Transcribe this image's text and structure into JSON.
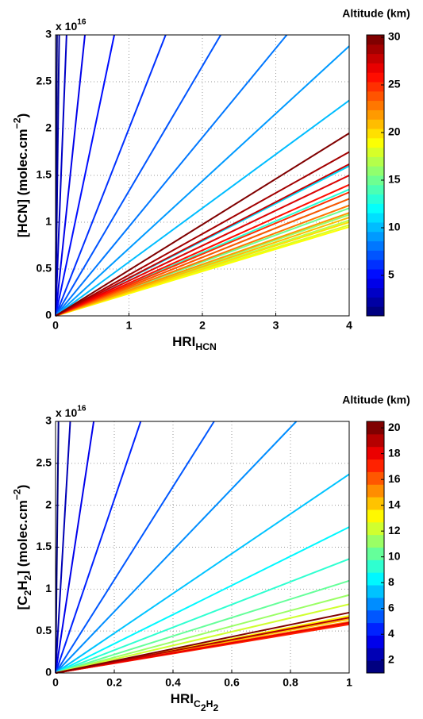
{
  "chart_data": [
    {
      "type": "line",
      "xlabel": [
        {
          "text": "HRI"
        },
        {
          "text": "HCN",
          "script": "sub"
        }
      ],
      "ylabel": [
        {
          "text": "[HCN] (molec.cm"
        },
        {
          "text": "−2",
          "script": "sup"
        },
        {
          "text": ")"
        }
      ],
      "y_multiplier": [
        {
          "text": "x 10"
        },
        {
          "text": "16",
          "script": "sup"
        }
      ],
      "xlim": [
        0,
        4
      ],
      "xticks": [
        0,
        1,
        2,
        3,
        4
      ],
      "ylim": [
        0,
        3
      ],
      "yticks": [
        0,
        0.5,
        1,
        1.5,
        2,
        2.5,
        3
      ],
      "grid": true,
      "colorbar": {
        "label": "Altitude (km)",
        "lim": [
          0.75,
          30.25
        ],
        "ticks": [
          5,
          10,
          15,
          20,
          25,
          30
        ]
      },
      "series": [
        {
          "color": "#000080",
          "x": [
            0,
            0.02
          ],
          "values": [
            0,
            3
          ]
        },
        {
          "color": "#0000a3",
          "x": [
            0,
            0.05
          ],
          "values": [
            0,
            3
          ]
        },
        {
          "color": "#0000c6",
          "x": [
            0,
            0.15
          ],
          "values": [
            0,
            3
          ]
        },
        {
          "color": "#0000e9",
          "x": [
            0,
            0.4
          ],
          "values": [
            0,
            3
          ]
        },
        {
          "color": "#000dff",
          "x": [
            0,
            0.8
          ],
          "values": [
            0,
            3
          ]
        },
        {
          "color": "#0030ff",
          "x": [
            0,
            1.5
          ],
          "values": [
            0,
            3
          ]
        },
        {
          "color": "#0054ff",
          "x": [
            0,
            2.25
          ],
          "values": [
            0,
            3
          ]
        },
        {
          "color": "#0077ff",
          "x": [
            0,
            3.15
          ],
          "values": [
            0,
            3
          ]
        },
        {
          "color": "#009aff",
          "x": [
            0,
            4
          ],
          "values": [
            0,
            2.88
          ]
        },
        {
          "color": "#00bdff",
          "x": [
            0,
            4
          ],
          "values": [
            0,
            2.3
          ]
        },
        {
          "color": "#00e0ff",
          "x": [
            0,
            4
          ],
          "values": [
            0,
            1.6
          ]
        },
        {
          "color": "#04fffb",
          "x": [
            0,
            4
          ],
          "values": [
            0,
            1.5
          ]
        },
        {
          "color": "#28ffd7",
          "x": [
            0,
            4
          ],
          "values": [
            0,
            1.35
          ]
        },
        {
          "color": "#4bffb4",
          "x": [
            0,
            4
          ],
          "values": [
            0,
            1.25
          ]
        },
        {
          "color": "#6eff91",
          "x": [
            0,
            4
          ],
          "values": [
            0,
            1.15
          ]
        },
        {
          "color": "#91ff6e",
          "x": [
            0,
            4
          ],
          "values": [
            0,
            1.08
          ]
        },
        {
          "color": "#b4ff4b",
          "x": [
            0,
            4
          ],
          "values": [
            0,
            1.02
          ]
        },
        {
          "color": "#d7ff28",
          "x": [
            0,
            4
          ],
          "values": [
            0,
            0.97
          ]
        },
        {
          "color": "#fbff04",
          "x": [
            0,
            4
          ],
          "values": [
            0,
            0.95
          ]
        },
        {
          "color": "#ffe000",
          "x": [
            0,
            4
          ],
          "values": [
            0,
            1.0
          ]
        },
        {
          "color": "#ffbd00",
          "x": [
            0,
            4
          ],
          "values": [
            0,
            1.05
          ]
        },
        {
          "color": "#ff9a00",
          "x": [
            0,
            4
          ],
          "values": [
            0,
            1.1
          ]
        },
        {
          "color": "#ff7700",
          "x": [
            0,
            4
          ],
          "values": [
            0,
            1.18
          ]
        },
        {
          "color": "#ff5400",
          "x": [
            0,
            4
          ],
          "values": [
            0,
            1.25
          ]
        },
        {
          "color": "#ff3000",
          "x": [
            0,
            4
          ],
          "values": [
            0,
            1.32
          ]
        },
        {
          "color": "#ff0d00",
          "x": [
            0,
            4
          ],
          "values": [
            0,
            1.4
          ]
        },
        {
          "color": "#e90000",
          "x": [
            0,
            4
          ],
          "values": [
            0,
            1.5
          ]
        },
        {
          "color": "#c60000",
          "x": [
            0,
            4
          ],
          "values": [
            0,
            1.62
          ]
        },
        {
          "color": "#a30000",
          "x": [
            0,
            4
          ],
          "values": [
            0,
            1.75
          ]
        },
        {
          "color": "#800000",
          "x": [
            0,
            4
          ],
          "values": [
            0,
            1.95
          ]
        }
      ]
    },
    {
      "type": "line",
      "xlabel": [
        {
          "text": "HRI"
        },
        {
          "text": "C",
          "script": "sub"
        },
        {
          "text": "2",
          "script": "sub2"
        },
        {
          "text": "H",
          "script": "sub"
        },
        {
          "text": "2",
          "script": "sub2"
        }
      ],
      "ylabel": [
        {
          "text": "[C"
        },
        {
          "text": "2",
          "script": "sub"
        },
        {
          "text": "H"
        },
        {
          "text": "2",
          "script": "sub"
        },
        {
          "text": "] (molec.cm"
        },
        {
          "text": "−2",
          "script": "sup"
        },
        {
          "text": ")"
        }
      ],
      "y_multiplier": [
        {
          "text": "x 10"
        },
        {
          "text": "16",
          "script": "sup"
        }
      ],
      "xlim": [
        0,
        1
      ],
      "xticks": [
        0,
        0.2,
        0.4,
        0.6,
        0.8,
        1
      ],
      "ylim": [
        0,
        3
      ],
      "yticks": [
        0,
        0.5,
        1,
        1.5,
        2,
        2.5,
        3
      ],
      "grid": true,
      "colorbar": {
        "label": "Altitude (km)",
        "lim": [
          1,
          20.5
        ],
        "ticks": [
          2,
          4,
          6,
          8,
          10,
          12,
          14,
          16,
          18,
          20
        ]
      },
      "series": [
        {
          "color": "#000080",
          "x": [
            0,
            0.01
          ],
          "values": [
            0,
            3
          ]
        },
        {
          "color": "#0000b5",
          "x": [
            0,
            0.05
          ],
          "values": [
            0,
            3
          ]
        },
        {
          "color": "#0000eb",
          "x": [
            0,
            0.13
          ],
          "values": [
            0,
            3
          ]
        },
        {
          "color": "#0022ff",
          "x": [
            0,
            0.29
          ],
          "values": [
            0,
            3
          ]
        },
        {
          "color": "#0057ff",
          "x": [
            0,
            0.54
          ],
          "values": [
            0,
            3
          ]
        },
        {
          "color": "#008dff",
          "x": [
            0,
            0.82
          ],
          "values": [
            0,
            3
          ]
        },
        {
          "color": "#00c3ff",
          "x": [
            0,
            1
          ],
          "values": [
            0,
            2.37
          ]
        },
        {
          "color": "#00f8ff",
          "x": [
            0,
            1
          ],
          "values": [
            0,
            1.74
          ]
        },
        {
          "color": "#2fffd0",
          "x": [
            0,
            1
          ],
          "values": [
            0,
            1.36
          ]
        },
        {
          "color": "#65ff9a",
          "x": [
            0,
            1
          ],
          "values": [
            0,
            1.1
          ]
        },
        {
          "color": "#9aff65",
          "x": [
            0,
            1
          ],
          "values": [
            0,
            0.93
          ]
        },
        {
          "color": "#d0ff2f",
          "x": [
            0,
            1
          ],
          "values": [
            0,
            0.82
          ]
        },
        {
          "color": "#fff800",
          "x": [
            0,
            1
          ],
          "values": [
            0,
            0.68
          ]
        },
        {
          "color": "#ffc300",
          "x": [
            0,
            1
          ],
          "values": [
            0,
            0.64
          ]
        },
        {
          "color": "#ff8d00",
          "x": [
            0,
            1
          ],
          "values": [
            0,
            0.61
          ]
        },
        {
          "color": "#ff5700",
          "x": [
            0,
            1
          ],
          "values": [
            0,
            0.59
          ]
        },
        {
          "color": "#ff2200",
          "x": [
            0,
            1
          ],
          "values": [
            0,
            0.58
          ]
        },
        {
          "color": "#eb0000",
          "x": [
            0,
            1
          ],
          "values": [
            0,
            0.6
          ]
        },
        {
          "color": "#b50000",
          "x": [
            0,
            1
          ],
          "values": [
            0,
            0.66
          ]
        },
        {
          "color": "#800000",
          "x": [
            0,
            1
          ],
          "values": [
            0,
            0.72
          ]
        }
      ]
    }
  ]
}
